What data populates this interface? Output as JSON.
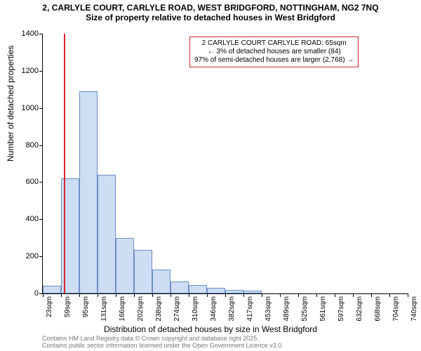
{
  "title": {
    "line1": "2, CARLYLE COURT, CARLYLE ROAD, WEST BRIDGFORD, NOTTINGHAM, NG2 7NQ",
    "line2": "Size of property relative to detached houses in West Bridgford",
    "fontsize": 12,
    "fontweight": "bold"
  },
  "chart": {
    "type": "histogram",
    "ylim": [
      0,
      1400
    ],
    "ytick_step": 200,
    "yticks": [
      0,
      200,
      400,
      600,
      800,
      1000,
      1200,
      1400
    ],
    "xlabels": [
      "23sqm",
      "59sqm",
      "95sqm",
      "131sqm",
      "166sqm",
      "202sqm",
      "238sqm",
      "274sqm",
      "310sqm",
      "346sqm",
      "382sqm",
      "417sqm",
      "453sqm",
      "489sqm",
      "525sqm",
      "561sqm",
      "597sqm",
      "632sqm",
      "668sqm",
      "704sqm",
      "740sqm"
    ],
    "bars": [
      40,
      620,
      1090,
      640,
      300,
      235,
      130,
      65,
      45,
      30,
      20,
      15,
      0,
      0,
      0,
      0,
      0,
      0,
      0,
      0
    ],
    "bar_fill": "#cdddf3",
    "bar_border": "#6b8fc4",
    "background_color": "#ffffff",
    "axis_color": "#000000",
    "ylabel": "Number of detached properties",
    "xlabel": "Distribution of detached houses by size in West Bridgford",
    "label_fontsize": 12,
    "tick_fontsize": 10,
    "marker_line": {
      "value_sqm": 65,
      "color": "#d9252a"
    },
    "annotation": {
      "line1": "2 CARLYLE COURT CARLYLE ROAD: 65sqm",
      "line2": "← 3% of detached houses are smaller (84)",
      "line3": "97% of semi-detached houses are larger (2,768) →",
      "border_color": "#d9252a",
      "background": "#ffffff",
      "fontsize": 10
    }
  },
  "footer": {
    "line1": "Contains HM Land Registry data © Crown copyright and database right 2025.",
    "line2": "Contains public sector information licensed under the Open Government Licence v3.0.",
    "color": "#777777",
    "fontsize": 9
  }
}
